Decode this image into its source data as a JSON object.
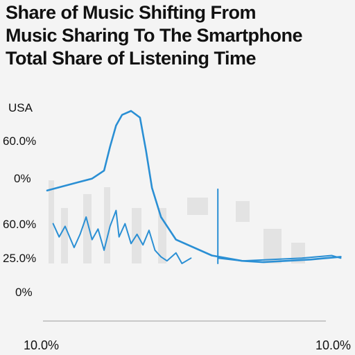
{
  "title_lines": [
    "Share of Music Shifting From",
    "Music Sharing To The Smartphone",
    "Total Share of Listening Time"
  ],
  "colors": {
    "line": "#2a8fd4",
    "axis": "#b9b9b9",
    "ghost": "#d6d6d6"
  },
  "chart_data": {
    "type": "line",
    "title": "Share of Music Shifting From Music Sharing To The Smartphone Total Share of Listening Time",
    "y_labels": [
      "USA",
      "60.0%",
      "0%",
      "60.0%",
      "25.0%",
      "0%"
    ],
    "x_labels": [
      "10.0%",
      "10.0%"
    ],
    "grid": false,
    "series": [
      {
        "points": [
          [
            0,
            55
          ],
          [
            5,
            58
          ],
          [
            10,
            61
          ],
          [
            15,
            64
          ],
          [
            19,
            70
          ],
          [
            21,
            88
          ],
          [
            23,
            104
          ],
          [
            25,
            112
          ],
          [
            28,
            115
          ],
          [
            31,
            110
          ],
          [
            33,
            85
          ],
          [
            35,
            57
          ],
          [
            38,
            35
          ],
          [
            43,
            18
          ],
          [
            55,
            6
          ],
          [
            65,
            2
          ],
          [
            72,
            1
          ],
          [
            80,
            2
          ],
          [
            88,
            3
          ],
          [
            93,
            4
          ],
          [
            98,
            5
          ]
        ]
      },
      {
        "points": [
          [
            2,
            30
          ],
          [
            4,
            20
          ],
          [
            6,
            28
          ],
          [
            9,
            12
          ],
          [
            11,
            22
          ],
          [
            13,
            35
          ],
          [
            15,
            18
          ],
          [
            17,
            26
          ],
          [
            19,
            10
          ],
          [
            21,
            28
          ],
          [
            23,
            40
          ],
          [
            24,
            20
          ],
          [
            26,
            30
          ],
          [
            28,
            15
          ],
          [
            30,
            22
          ],
          [
            32,
            14
          ],
          [
            34,
            25
          ],
          [
            36,
            10
          ],
          [
            38,
            5
          ],
          [
            40,
            2
          ],
          [
            43,
            8
          ],
          [
            45,
            0
          ],
          [
            48,
            4
          ]
        ]
      },
      {
        "points": [
          [
            57,
            0
          ],
          [
            57,
            56
          ],
          [
            57,
            4
          ],
          [
            65,
            2
          ],
          [
            75,
            3
          ],
          [
            85,
            4
          ],
          [
            90,
            5
          ],
          [
            95,
            6
          ],
          [
            98,
            4
          ]
        ]
      }
    ]
  }
}
